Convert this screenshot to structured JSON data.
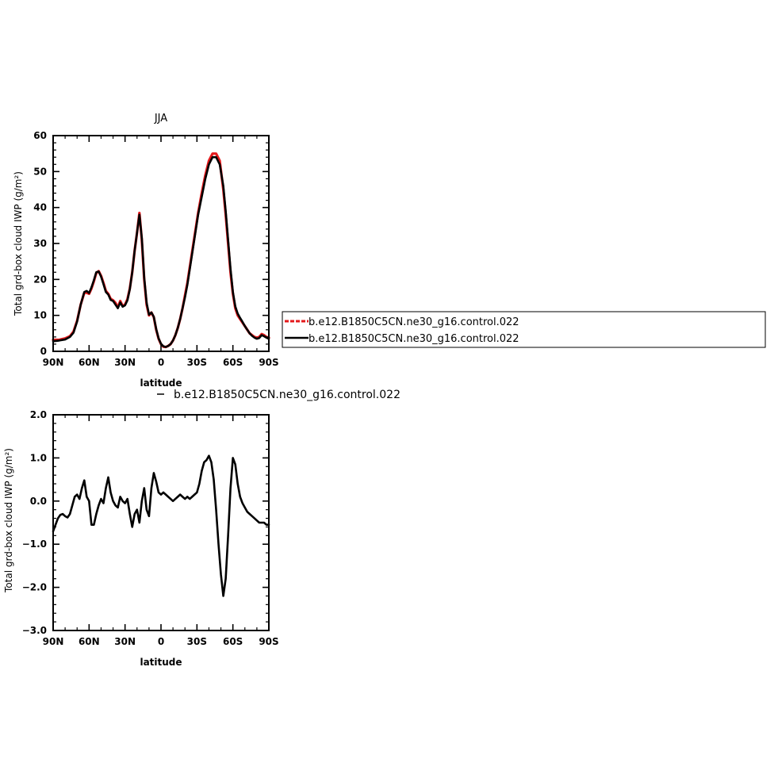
{
  "chart_data": [
    {
      "type": "line",
      "title": "JJA",
      "xlabel": "latitude",
      "ylabel": "Total grd-box cloud IWP (g/m²)",
      "xlim": [
        90,
        -90
      ],
      "ylim": [
        0,
        60
      ],
      "x_ticks": [
        90,
        60,
        30,
        0,
        -30,
        -60,
        -90
      ],
      "x_tick_labels": [
        "90N",
        "60N",
        "30N",
        "0",
        "30S",
        "60S",
        "90S"
      ],
      "y_ticks": [
        0,
        10,
        20,
        30,
        40,
        50,
        60
      ],
      "y_tick_labels": [
        "0",
        "10",
        "20",
        "30",
        "40",
        "50",
        "60"
      ],
      "legend_placement": "right",
      "grid": false,
      "series": [
        {
          "name": "b.e12.B1850C5CN.ne30_g16.control.022",
          "color": "#e41a1c",
          "style": "dashed",
          "x": [
            90,
            85,
            80,
            76,
            73,
            70,
            67,
            64,
            62,
            60,
            58,
            56,
            54,
            52,
            50,
            48,
            46,
            44,
            42,
            40,
            38,
            36,
            34,
            32,
            30,
            28,
            26,
            24,
            22,
            20,
            18,
            16,
            14,
            12,
            10,
            8,
            6,
            4,
            2,
            0,
            -2,
            -4,
            -6,
            -8,
            -10,
            -12,
            -14,
            -16,
            -18,
            -20,
            -22,
            -25,
            -28,
            -31,
            -34,
            -37,
            -40,
            -43,
            -46,
            -49,
            -52,
            -54,
            -56,
            -58,
            -60,
            -62,
            -64,
            -66,
            -68,
            -70,
            -72,
            -74,
            -76,
            -78,
            -80,
            -82,
            -84,
            -86,
            -88,
            -90
          ],
          "values": [
            3.2,
            3.2,
            3.6,
            4.2,
            5.5,
            8.5,
            13.0,
            16.3,
            16.3,
            16.0,
            17.5,
            19.5,
            21.8,
            22.3,
            21.0,
            19.0,
            16.8,
            16.0,
            14.6,
            14.2,
            13.5,
            12.2,
            14.0,
            12.6,
            13.0,
            14.5,
            17.5,
            22.0,
            28.0,
            33.0,
            38.5,
            31.0,
            20.0,
            13.0,
            10.0,
            10.8,
            9.5,
            6.0,
            3.5,
            2.0,
            1.3,
            1.2,
            1.5,
            2.0,
            3.0,
            4.5,
            6.5,
            9.0,
            12.0,
            15.5,
            19.0,
            25.5,
            32.0,
            38.5,
            44.0,
            49.0,
            53.0,
            55.0,
            55.0,
            53.0,
            45.0,
            38.0,
            30.0,
            22.0,
            16.0,
            12.0,
            10.0,
            9.0,
            8.0,
            7.0,
            6.0,
            5.0,
            4.5,
            4.0,
            3.8,
            4.0,
            4.8,
            4.5,
            4.0,
            3.8
          ]
        },
        {
          "name": "b.e12.B1850C5CN.ne30_g16.control.022",
          "color": "#000000",
          "style": "solid",
          "x": [
            90,
            85,
            80,
            76,
            73,
            70,
            67,
            64,
            62,
            60,
            58,
            56,
            54,
            52,
            50,
            48,
            46,
            44,
            42,
            40,
            38,
            36,
            34,
            32,
            30,
            28,
            26,
            24,
            22,
            20,
            18,
            16,
            14,
            12,
            10,
            8,
            6,
            4,
            2,
            0,
            -2,
            -4,
            -6,
            -8,
            -10,
            -12,
            -14,
            -16,
            -18,
            -20,
            -22,
            -25,
            -28,
            -31,
            -34,
            -37,
            -40,
            -43,
            -46,
            -49,
            -52,
            -54,
            -56,
            -58,
            -60,
            -62,
            -64,
            -66,
            -68,
            -70,
            -72,
            -74,
            -76,
            -78,
            -80,
            -82,
            -84,
            -86,
            -88,
            -90
          ],
          "values": [
            2.8,
            3.0,
            3.3,
            4.0,
            5.2,
            8.3,
            13.0,
            16.5,
            16.8,
            16.2,
            17.8,
            19.8,
            22.0,
            22.2,
            20.8,
            18.7,
            16.5,
            15.8,
            14.3,
            14.0,
            13.0,
            12.0,
            13.6,
            12.4,
            12.8,
            14.2,
            17.3,
            22.0,
            28.0,
            33.0,
            38.0,
            31.5,
            20.5,
            13.5,
            10.2,
            10.8,
            9.6,
            6.2,
            3.6,
            2.1,
            1.4,
            1.2,
            1.5,
            2.0,
            3.0,
            4.5,
            6.5,
            9.0,
            12.0,
            15.0,
            18.5,
            25.0,
            31.5,
            38.0,
            43.0,
            48.0,
            52.0,
            54.0,
            54.0,
            52.0,
            46.0,
            39.0,
            31.0,
            23.0,
            16.5,
            12.5,
            10.5,
            9.3,
            8.2,
            7.0,
            6.0,
            5.0,
            4.3,
            3.8,
            3.5,
            3.7,
            4.5,
            4.2,
            3.8,
            3.5
          ]
        }
      ]
    },
    {
      "type": "line",
      "title": "",
      "xlabel": "latitude",
      "ylabel": "Total grd-box cloud IWP (g/m²)",
      "xlim": [
        90,
        -90
      ],
      "ylim": [
        -3.0,
        2.0
      ],
      "x_ticks": [
        90,
        60,
        30,
        0,
        -30,
        -60,
        -90
      ],
      "x_tick_labels": [
        "90N",
        "60N",
        "30N",
        "0",
        "30S",
        "60S",
        "90S"
      ],
      "y_ticks": [
        -3,
        -2,
        -1,
        0,
        1,
        2
      ],
      "y_tick_labels": [
        "−3.0",
        "−2.0",
        "−1.0",
        "0.0",
        "1.0",
        "2.0"
      ],
      "legend_entry": "b.e12.B1850C5CN.ne30_g16.control.022",
      "legend_placement": "top",
      "grid": false,
      "series": [
        {
          "name": "b.e12.B1850C5CN.ne30_g16.control.022",
          "color": "#000000",
          "style": "solid",
          "x": [
            90,
            88,
            86,
            84,
            82,
            80,
            78,
            76,
            74,
            72,
            70,
            68,
            66,
            64,
            62,
            60,
            58,
            56,
            54,
            52,
            50,
            48,
            46,
            44,
            42,
            40,
            38,
            36,
            34,
            32,
            30,
            28,
            26,
            24,
            22,
            20,
            18,
            16,
            14,
            12,
            10,
            8,
            6,
            4,
            2,
            0,
            -2,
            -4,
            -6,
            -8,
            -10,
            -12,
            -14,
            -16,
            -18,
            -20,
            -22,
            -24,
            -26,
            -28,
            -30,
            -32,
            -34,
            -36,
            -38,
            -40,
            -42,
            -44,
            -46,
            -48,
            -50,
            -52,
            -54,
            -56,
            -58,
            -60,
            -62,
            -64,
            -66,
            -68,
            -70,
            -72,
            -74,
            -76,
            -78,
            -80,
            -82,
            -84,
            -86,
            -88,
            -90
          ],
          "values": [
            -0.7,
            -0.55,
            -0.4,
            -0.32,
            -0.3,
            -0.35,
            -0.38,
            -0.3,
            -0.1,
            0.1,
            0.15,
            0.05,
            0.3,
            0.48,
            0.1,
            0.0,
            -0.55,
            -0.55,
            -0.3,
            -0.1,
            0.05,
            -0.05,
            0.3,
            0.55,
            0.2,
            0.0,
            -0.1,
            -0.15,
            0.1,
            0.0,
            -0.05,
            0.05,
            -0.3,
            -0.6,
            -0.3,
            -0.2,
            -0.5,
            0.0,
            0.3,
            -0.2,
            -0.35,
            0.3,
            0.65,
            0.45,
            0.2,
            0.15,
            0.2,
            0.15,
            0.1,
            0.05,
            0.0,
            0.05,
            0.1,
            0.15,
            0.1,
            0.05,
            0.1,
            0.05,
            0.1,
            0.15,
            0.2,
            0.4,
            0.7,
            0.9,
            0.95,
            1.05,
            0.9,
            0.5,
            -0.2,
            -1.0,
            -1.7,
            -2.2,
            -1.8,
            -0.8,
            0.3,
            1.0,
            0.85,
            0.4,
            0.1,
            -0.05,
            -0.15,
            -0.25,
            -0.3,
            -0.35,
            -0.4,
            -0.45,
            -0.5,
            -0.5,
            -0.5,
            -0.55,
            -0.55
          ]
        }
      ]
    }
  ]
}
